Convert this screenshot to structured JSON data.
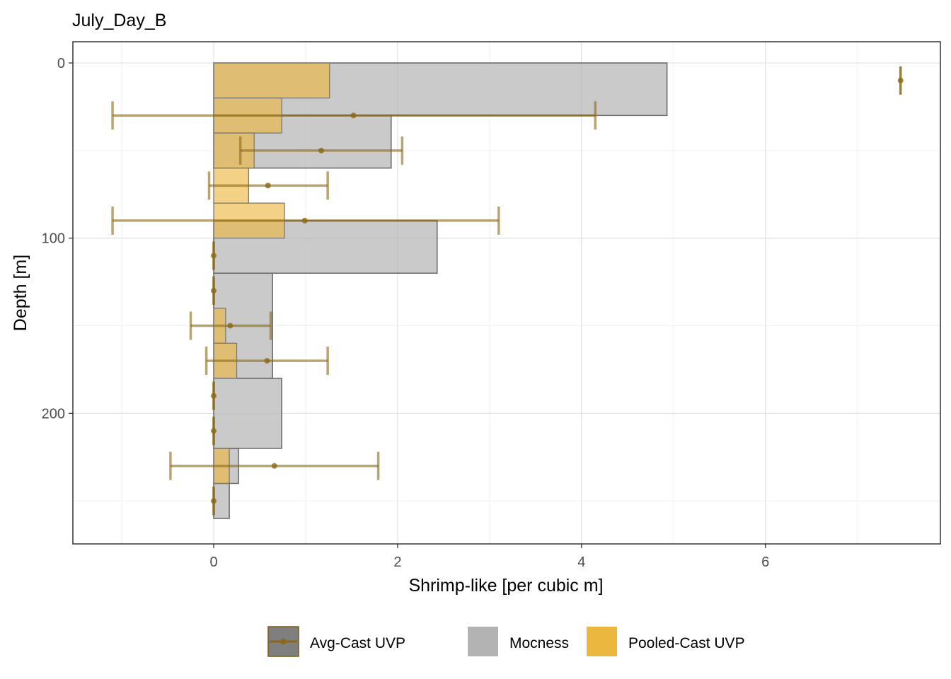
{
  "chart_data": {
    "type": "bar",
    "title": "July_Day_B",
    "xlabel": "Shrimp-like [per cubic m]",
    "ylabel": "Depth [m]",
    "xlim": [
      -1.53,
      7.9
    ],
    "ylim": [
      272,
      -13
    ],
    "x_ticks": [
      0,
      2,
      4,
      6
    ],
    "y_ticks": [
      0,
      100,
      200
    ],
    "x_tick_labels": [
      "0",
      "2",
      "4",
      "6"
    ],
    "y_tick_labels": [
      "0",
      "100",
      "200"
    ],
    "grid": true,
    "legend_position": "bottom",
    "legend": [
      {
        "label": "Avg-Cast UVP",
        "key": "avg",
        "color": "#8B6914"
      },
      {
        "label": "Mocness",
        "key": "moc",
        "color": "#b3b3b3"
      },
      {
        "label": "Pooled-Cast UVP",
        "key": "pooled",
        "color": "#EBB73E"
      }
    ],
    "series": [
      {
        "name": "Mocness",
        "kind": "bar",
        "color": "#b3b3b3",
        "bars": [
          {
            "depth_top": 0,
            "depth_bottom": 30,
            "value": 4.93
          },
          {
            "depth_top": 30,
            "depth_bottom": 60,
            "value": 1.93
          },
          {
            "depth_top": 90,
            "depth_bottom": 120,
            "value": 2.43
          },
          {
            "depth_top": 120,
            "depth_bottom": 180,
            "value": 0.64
          },
          {
            "depth_top": 180,
            "depth_bottom": 220,
            "value": 0.74
          },
          {
            "depth_top": 220,
            "depth_bottom": 240,
            "value": 0.27
          },
          {
            "depth_top": 240,
            "depth_bottom": 260,
            "value": 0.17
          }
        ]
      },
      {
        "name": "Pooled-Cast UVP",
        "kind": "bar",
        "color": "#EBB73E",
        "bars": [
          {
            "depth_top": 0,
            "depth_bottom": 20,
            "value": 1.26
          },
          {
            "depth_top": 20,
            "depth_bottom": 40,
            "value": 0.74
          },
          {
            "depth_top": 40,
            "depth_bottom": 60,
            "value": 0.44
          },
          {
            "depth_top": 60,
            "depth_bottom": 80,
            "value": 0.38
          },
          {
            "depth_top": 80,
            "depth_bottom": 100,
            "value": 0.77
          },
          {
            "depth_top": 140,
            "depth_bottom": 160,
            "value": 0.13
          },
          {
            "depth_top": 160,
            "depth_bottom": 180,
            "value": 0.25
          },
          {
            "depth_top": 220,
            "depth_bottom": 240,
            "value": 0.17
          }
        ]
      },
      {
        "name": "Avg-Cast UVP",
        "kind": "errorbar",
        "color": "#8B6914",
        "points": [
          {
            "depth": 10,
            "value": 7.47,
            "lo": 7.47,
            "hi": 7.47
          },
          {
            "depth": 30,
            "value": 1.52,
            "lo": -1.1,
            "hi": 4.15
          },
          {
            "depth": 50,
            "value": 1.17,
            "lo": 0.29,
            "hi": 2.05
          },
          {
            "depth": 70,
            "value": 0.59,
            "lo": -0.05,
            "hi": 1.24
          },
          {
            "depth": 90,
            "value": 0.99,
            "lo": -1.1,
            "hi": 3.1
          },
          {
            "depth": 110,
            "value": 0.0,
            "lo": 0.0,
            "hi": 0.0
          },
          {
            "depth": 130,
            "value": 0.0,
            "lo": 0.0,
            "hi": 0.0
          },
          {
            "depth": 150,
            "value": 0.18,
            "lo": -0.25,
            "hi": 0.62
          },
          {
            "depth": 170,
            "value": 0.58,
            "lo": -0.08,
            "hi": 1.24
          },
          {
            "depth": 190,
            "value": 0.0,
            "lo": 0.0,
            "hi": 0.0
          },
          {
            "depth": 210,
            "value": 0.0,
            "lo": 0.0,
            "hi": 0.0
          },
          {
            "depth": 230,
            "value": 0.66,
            "lo": -0.47,
            "hi": 1.79
          },
          {
            "depth": 250,
            "value": 0.0,
            "lo": 0.0,
            "hi": 0.0
          }
        ]
      }
    ]
  }
}
